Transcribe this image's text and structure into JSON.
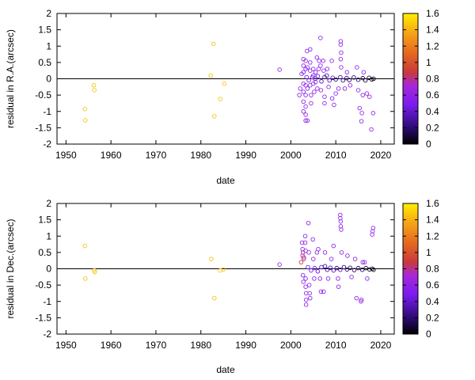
{
  "chart_data": [
    {
      "type": "scatter",
      "xlabel": "date",
      "ylabel": "residual in R.A.(arcsec)",
      "xlim": [
        1948,
        2023
      ],
      "ylim": [
        -2,
        2
      ],
      "xticks": [
        1950,
        1960,
        1970,
        1980,
        1990,
        2000,
        2010,
        2020
      ],
      "yticks": [
        -2,
        -1.5,
        -1,
        -0.5,
        0,
        0.5,
        1,
        1.5,
        2
      ],
      "zero_line": true,
      "grid": false,
      "colorbar": {
        "range": [
          0,
          1.6
        ],
        "ticks": [
          0,
          0.2,
          0.4,
          0.6,
          0.8,
          1,
          1.2,
          1.4,
          1.6
        ],
        "palette": "black-purple-red-orange-yellow",
        "position": "right"
      },
      "points": [
        {
          "x": 1954.2,
          "y": -0.93,
          "c": 1.5
        },
        {
          "x": 1954.3,
          "y": -1.27,
          "c": 1.5
        },
        {
          "x": 1956.2,
          "y": -0.2,
          "c": 1.5
        },
        {
          "x": 1956.3,
          "y": -0.35,
          "c": 1.5
        },
        {
          "x": 1982.2,
          "y": 0.1,
          "c": 1.5
        },
        {
          "x": 1982.8,
          "y": 1.07,
          "c": 1.5
        },
        {
          "x": 1983.0,
          "y": -1.15,
          "c": 1.5
        },
        {
          "x": 1984.3,
          "y": -0.62,
          "c": 1.5
        },
        {
          "x": 1985.2,
          "y": -0.15,
          "c": 1.5
        },
        {
          "x": 1997.5,
          "y": 0.28,
          "c": 0.6
        },
        {
          "x": 2001.9,
          "y": -0.5,
          "c": 0.6
        },
        {
          "x": 2002.1,
          "y": -0.3,
          "c": 0.6
        },
        {
          "x": 2002.4,
          "y": 0.15,
          "c": 0.6
        },
        {
          "x": 2002.8,
          "y": 0.6,
          "c": 0.6
        },
        {
          "x": 2002.8,
          "y": 0.4,
          "c": 0.6
        },
        {
          "x": 2002.8,
          "y": 0.2,
          "c": 0.6
        },
        {
          "x": 2002.8,
          "y": -0.15,
          "c": 0.6
        },
        {
          "x": 2002.8,
          "y": -0.4,
          "c": 0.6
        },
        {
          "x": 2002.8,
          "y": -0.7,
          "c": 0.6
        },
        {
          "x": 2002.8,
          "y": -1.0,
          "c": 0.6
        },
        {
          "x": 2003.3,
          "y": 0.55,
          "c": 0.6
        },
        {
          "x": 2003.3,
          "y": 0.3,
          "c": 0.6
        },
        {
          "x": 2003.3,
          "y": -0.2,
          "c": 0.6
        },
        {
          "x": 2003.3,
          "y": -0.5,
          "c": 0.6
        },
        {
          "x": 2003.3,
          "y": -0.85,
          "c": 0.6
        },
        {
          "x": 2003.3,
          "y": -1.1,
          "c": 0.6
        },
        {
          "x": 2003.3,
          "y": -1.28,
          "c": 0.6
        },
        {
          "x": 2003.6,
          "y": 0.85,
          "c": 0.6
        },
        {
          "x": 2003.7,
          "y": 0.35,
          "c": 0.6
        },
        {
          "x": 2003.7,
          "y": -0.3,
          "c": 0.6
        },
        {
          "x": 2003.7,
          "y": -1.28,
          "c": 0.6
        },
        {
          "x": 2004.3,
          "y": 0.9,
          "c": 0.6
        },
        {
          "x": 2004.3,
          "y": 0.5,
          "c": 0.6
        },
        {
          "x": 2004.3,
          "y": 0.25,
          "c": 0.6
        },
        {
          "x": 2004.3,
          "y": -0.2,
          "c": 0.6
        },
        {
          "x": 2004.5,
          "y": -0.5,
          "c": 0.6
        },
        {
          "x": 2004.5,
          "y": -0.75,
          "c": 0.6
        },
        {
          "x": 2005.0,
          "y": 0.3,
          "c": 0.6
        },
        {
          "x": 2005.0,
          "y": 0.1,
          "c": 0.6
        },
        {
          "x": 2005.0,
          "y": -0.15,
          "c": 0.6
        },
        {
          "x": 2005.2,
          "y": -0.4,
          "c": 0.6
        },
        {
          "x": 2005.5,
          "y": 0.2,
          "c": 0.6
        },
        {
          "x": 2005.5,
          "y": -0.1,
          "c": 0.6
        },
        {
          "x": 2005.8,
          "y": 0.65,
          "c": 0.6
        },
        {
          "x": 2005.9,
          "y": -0.3,
          "c": 0.6
        },
        {
          "x": 2006.2,
          "y": 0.3,
          "c": 0.6
        },
        {
          "x": 2006.3,
          "y": 0.55,
          "c": 0.6
        },
        {
          "x": 2006.6,
          "y": 1.25,
          "c": 0.6
        },
        {
          "x": 2006.6,
          "y": 0.4,
          "c": 0.6
        },
        {
          "x": 2006.7,
          "y": -0.35,
          "c": 0.6
        },
        {
          "x": 2007.2,
          "y": 0.55,
          "c": 0.6
        },
        {
          "x": 2007.3,
          "y": 0.25,
          "c": 0.6
        },
        {
          "x": 2007.5,
          "y": -0.55,
          "c": 0.6
        },
        {
          "x": 2007.5,
          "y": -0.75,
          "c": 0.6
        },
        {
          "x": 2008.1,
          "y": 0.3,
          "c": 0.6
        },
        {
          "x": 2008.4,
          "y": -0.25,
          "c": 0.6
        },
        {
          "x": 2009.1,
          "y": 0.55,
          "c": 0.6
        },
        {
          "x": 2009.2,
          "y": -0.6,
          "c": 0.6
        },
        {
          "x": 2009.6,
          "y": -0.8,
          "c": 0.6
        },
        {
          "x": 2010.0,
          "y": -0.45,
          "c": 0.6
        },
        {
          "x": 2010.6,
          "y": -0.3,
          "c": 0.6
        },
        {
          "x": 2011.1,
          "y": 1.15,
          "c": 0.6
        },
        {
          "x": 2011.1,
          "y": 1.05,
          "c": 0.6
        },
        {
          "x": 2011.2,
          "y": 0.8,
          "c": 0.6
        },
        {
          "x": 2011.1,
          "y": 0.6,
          "c": 0.6
        },
        {
          "x": 2011.2,
          "y": 0.35,
          "c": 0.6
        },
        {
          "x": 2012.0,
          "y": -0.3,
          "c": 0.6
        },
        {
          "x": 2012.5,
          "y": 0.2,
          "c": 0.6
        },
        {
          "x": 2013.2,
          "y": -0.2,
          "c": 0.6
        },
        {
          "x": 2014.7,
          "y": 0.35,
          "c": 0.6
        },
        {
          "x": 2015.0,
          "y": -0.35,
          "c": 0.6
        },
        {
          "x": 2015.3,
          "y": -0.9,
          "c": 0.6
        },
        {
          "x": 2015.7,
          "y": -1.3,
          "c": 0.6
        },
        {
          "x": 2015.8,
          "y": -1.05,
          "c": 0.6
        },
        {
          "x": 2016.0,
          "y": -0.5,
          "c": 0.6
        },
        {
          "x": 2016.2,
          "y": 0.2,
          "c": 0.6
        },
        {
          "x": 2016.9,
          "y": -0.45,
          "c": 0.6
        },
        {
          "x": 2017.5,
          "y": -0.55,
          "c": 0.6
        },
        {
          "x": 2017.9,
          "y": -1.55,
          "c": 0.6
        },
        {
          "x": 2018.3,
          "y": -1.05,
          "c": 0.6
        },
        {
          "x": 2003.5,
          "y": 0.05,
          "c": 0.3
        },
        {
          "x": 2004.0,
          "y": -0.05,
          "c": 0.3
        },
        {
          "x": 2004.8,
          "y": 0.05,
          "c": 0.35
        },
        {
          "x": 2005.4,
          "y": 0.0,
          "c": 0.35
        },
        {
          "x": 2006.0,
          "y": 0.08,
          "c": 0.3
        },
        {
          "x": 2006.8,
          "y": -0.08,
          "c": 0.25
        },
        {
          "x": 2007.5,
          "y": 0.05,
          "c": 0.2
        },
        {
          "x": 2008.0,
          "y": 0.1,
          "c": 0.2
        },
        {
          "x": 2008.6,
          "y": -0.05,
          "c": 0.2
        },
        {
          "x": 2009.3,
          "y": 0.03,
          "c": 0.25
        },
        {
          "x": 2010.0,
          "y": -0.02,
          "c": 0.15
        },
        {
          "x": 2011.0,
          "y": 0.05,
          "c": 0.2
        },
        {
          "x": 2011.6,
          "y": -0.05,
          "c": 0.15
        },
        {
          "x": 2012.4,
          "y": 0.02,
          "c": 0.15
        },
        {
          "x": 2013.0,
          "y": -0.04,
          "c": 0.12
        },
        {
          "x": 2014.0,
          "y": 0.04,
          "c": 0.12
        },
        {
          "x": 2015.0,
          "y": -0.03,
          "c": 0.1
        },
        {
          "x": 2016.0,
          "y": 0.02,
          "c": 0.08
        },
        {
          "x": 2016.6,
          "y": -0.05,
          "c": 0.06
        },
        {
          "x": 2017.4,
          "y": 0.03,
          "c": 0.05
        },
        {
          "x": 2018.0,
          "y": -0.02,
          "c": 0.04
        },
        {
          "x": 2018.4,
          "y": 0.0,
          "c": 0.03
        }
      ]
    },
    {
      "type": "scatter",
      "xlabel": "date",
      "ylabel": "residual in Dec.(arcsec)",
      "xlim": [
        1948,
        2023
      ],
      "ylim": [
        -2,
        2
      ],
      "xticks": [
        1950,
        1960,
        1970,
        1980,
        1990,
        2000,
        2010,
        2020
      ],
      "yticks": [
        -2,
        -1.5,
        -1,
        -0.5,
        0,
        0.5,
        1,
        1.5,
        2
      ],
      "zero_line": true,
      "grid": false,
      "colorbar": {
        "range": [
          0,
          1.6
        ],
        "ticks": [
          0,
          0.2,
          0.4,
          0.6,
          0.8,
          1,
          1.2,
          1.4,
          1.6
        ],
        "palette": "black-purple-red-orange-yellow",
        "position": "right"
      },
      "points": [
        {
          "x": 1954.2,
          "y": 0.7,
          "c": 1.5
        },
        {
          "x": 1954.3,
          "y": -0.3,
          "c": 1.5
        },
        {
          "x": 1956.3,
          "y": -0.05,
          "c": 1.5
        },
        {
          "x": 1956.4,
          "y": -0.1,
          "c": 1.5
        },
        {
          "x": 1982.3,
          "y": 0.3,
          "c": 1.5
        },
        {
          "x": 1983.0,
          "y": -0.9,
          "c": 1.5
        },
        {
          "x": 1984.3,
          "y": -0.05,
          "c": 1.5
        },
        {
          "x": 1985.0,
          "y": -0.02,
          "c": 1.5
        },
        {
          "x": 1997.5,
          "y": 0.13,
          "c": 0.6
        },
        {
          "x": 2002.3,
          "y": 0.2,
          "c": 1.0
        },
        {
          "x": 2002.6,
          "y": 0.4,
          "c": 0.9
        },
        {
          "x": 2002.7,
          "y": 0.5,
          "c": 0.85
        },
        {
          "x": 2002.9,
          "y": 0.35,
          "c": 0.8
        },
        {
          "x": 2002.9,
          "y": 0.3,
          "c": 0.9
        },
        {
          "x": 2002.5,
          "y": 0.8,
          "c": 0.6
        },
        {
          "x": 2002.6,
          "y": 0.6,
          "c": 0.6
        },
        {
          "x": 2002.7,
          "y": -0.2,
          "c": 0.6
        },
        {
          "x": 2002.8,
          "y": -0.4,
          "c": 0.6
        },
        {
          "x": 2003.2,
          "y": 1.0,
          "c": 0.6
        },
        {
          "x": 2003.2,
          "y": 0.8,
          "c": 0.6
        },
        {
          "x": 2003.3,
          "y": 0.55,
          "c": 0.6
        },
        {
          "x": 2003.3,
          "y": -0.3,
          "c": 0.6
        },
        {
          "x": 2003.3,
          "y": -0.55,
          "c": 0.6
        },
        {
          "x": 2003.4,
          "y": -0.75,
          "c": 0.6
        },
        {
          "x": 2003.4,
          "y": -0.95,
          "c": 0.6
        },
        {
          "x": 2003.4,
          "y": -1.1,
          "c": 0.6
        },
        {
          "x": 2003.9,
          "y": 1.4,
          "c": 0.6
        },
        {
          "x": 2004.0,
          "y": 0.5,
          "c": 0.6
        },
        {
          "x": 2004.1,
          "y": -0.5,
          "c": 0.6
        },
        {
          "x": 2004.2,
          "y": -0.75,
          "c": 0.6
        },
        {
          "x": 2004.3,
          "y": -0.9,
          "c": 0.6
        },
        {
          "x": 2004.9,
          "y": 0.9,
          "c": 0.6
        },
        {
          "x": 2005.0,
          "y": 0.3,
          "c": 0.6
        },
        {
          "x": 2005.2,
          "y": -0.3,
          "c": 0.6
        },
        {
          "x": 2005.8,
          "y": 0.5,
          "c": 0.6
        },
        {
          "x": 2006.1,
          "y": 0.6,
          "c": 0.6
        },
        {
          "x": 2006.5,
          "y": -0.3,
          "c": 0.6
        },
        {
          "x": 2006.7,
          "y": -0.7,
          "c": 0.6
        },
        {
          "x": 2007.3,
          "y": -0.7,
          "c": 0.6
        },
        {
          "x": 2007.6,
          "y": 0.5,
          "c": 0.6
        },
        {
          "x": 2008.3,
          "y": -0.3,
          "c": 0.6
        },
        {
          "x": 2009.0,
          "y": 0.3,
          "c": 0.6
        },
        {
          "x": 2009.5,
          "y": 0.7,
          "c": 0.6
        },
        {
          "x": 2010.5,
          "y": -0.3,
          "c": 0.6
        },
        {
          "x": 2010.6,
          "y": -0.55,
          "c": 0.6
        },
        {
          "x": 2011.0,
          "y": 1.55,
          "c": 0.6
        },
        {
          "x": 2011.1,
          "y": 1.45,
          "c": 0.6
        },
        {
          "x": 2011.1,
          "y": 1.3,
          "c": 0.6
        },
        {
          "x": 2011.2,
          "y": 1.2,
          "c": 0.6
        },
        {
          "x": 2011.0,
          "y": 1.65,
          "c": 0.6
        },
        {
          "x": 2011.3,
          "y": 0.5,
          "c": 0.6
        },
        {
          "x": 2012.6,
          "y": 0.4,
          "c": 0.6
        },
        {
          "x": 2013.5,
          "y": -0.25,
          "c": 0.6
        },
        {
          "x": 2014.3,
          "y": 0.3,
          "c": 0.6
        },
        {
          "x": 2014.6,
          "y": -0.9,
          "c": 0.6
        },
        {
          "x": 2015.6,
          "y": -1.0,
          "c": 0.6
        },
        {
          "x": 2015.7,
          "y": -0.95,
          "c": 0.6
        },
        {
          "x": 2016.0,
          "y": 0.2,
          "c": 0.6
        },
        {
          "x": 2016.4,
          "y": 0.2,
          "c": 0.6
        },
        {
          "x": 2017.0,
          "y": -0.3,
          "c": 0.6
        },
        {
          "x": 2018.1,
          "y": 1.05,
          "c": 0.6
        },
        {
          "x": 2018.2,
          "y": 1.15,
          "c": 0.6
        },
        {
          "x": 2018.3,
          "y": 1.25,
          "c": 0.6
        },
        {
          "x": 2003.8,
          "y": 0.05,
          "c": 0.35
        },
        {
          "x": 2004.5,
          "y": -0.05,
          "c": 0.35
        },
        {
          "x": 2005.3,
          "y": 0.02,
          "c": 0.35
        },
        {
          "x": 2006.0,
          "y": -0.08,
          "c": 0.3
        },
        {
          "x": 2006.8,
          "y": 0.05,
          "c": 0.25
        },
        {
          "x": 2007.6,
          "y": 0.08,
          "c": 0.2
        },
        {
          "x": 2008.1,
          "y": -0.03,
          "c": 0.2
        },
        {
          "x": 2008.8,
          "y": 0.03,
          "c": 0.2
        },
        {
          "x": 2009.5,
          "y": -0.05,
          "c": 0.25
        },
        {
          "x": 2010.2,
          "y": 0.02,
          "c": 0.15
        },
        {
          "x": 2011.0,
          "y": -0.03,
          "c": 0.2
        },
        {
          "x": 2011.8,
          "y": 0.05,
          "c": 0.15
        },
        {
          "x": 2012.5,
          "y": -0.02,
          "c": 0.15
        },
        {
          "x": 2013.2,
          "y": 0.03,
          "c": 0.12
        },
        {
          "x": 2014.1,
          "y": -0.04,
          "c": 0.12
        },
        {
          "x": 2015.0,
          "y": 0.02,
          "c": 0.1
        },
        {
          "x": 2015.9,
          "y": -0.03,
          "c": 0.08
        },
        {
          "x": 2016.7,
          "y": 0.02,
          "c": 0.06
        },
        {
          "x": 2017.5,
          "y": -0.02,
          "c": 0.05
        },
        {
          "x": 2018.1,
          "y": 0.0,
          "c": 0.04
        },
        {
          "x": 2018.4,
          "y": -0.03,
          "c": 0.03
        }
      ]
    }
  ]
}
